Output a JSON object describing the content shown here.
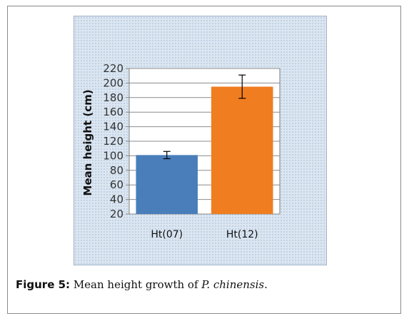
{
  "caption": {
    "label": "Figure 5:",
    "text_before": " Mean height growth of ",
    "species": "P. chinensis",
    "text_after": "."
  },
  "chart_data": {
    "type": "bar",
    "title": "",
    "xlabel": "",
    "ylabel": "Mean height (cm)",
    "ylim": [
      20,
      220
    ],
    "yticks": [
      20,
      40,
      60,
      80,
      100,
      120,
      140,
      160,
      180,
      200,
      220
    ],
    "grid": true,
    "categories": [
      "Ht(07)",
      "Ht(12)"
    ],
    "values": [
      101,
      195
    ],
    "errors": [
      5,
      16
    ],
    "colors": [
      "#4a7ebb",
      "#f07d1f"
    ]
  }
}
